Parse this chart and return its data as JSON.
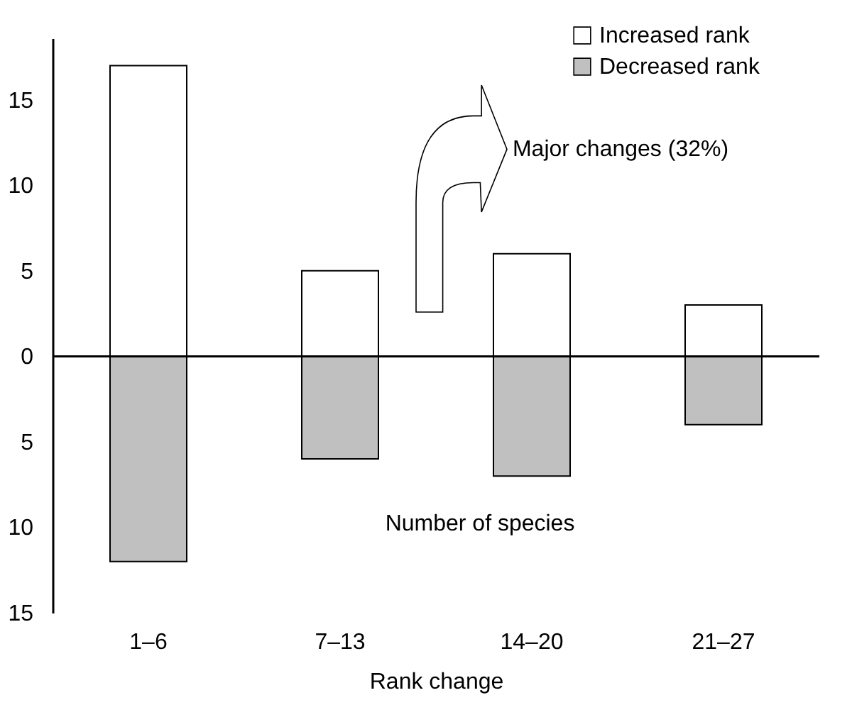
{
  "chart_data": {
    "type": "bar",
    "xlabel": "Rank change",
    "categories": [
      "1–6",
      "7–13",
      "14–20",
      "21–27"
    ],
    "series": [
      {
        "name": "Increased rank",
        "color": "#ffffff",
        "values": [
          17,
          5,
          6,
          3
        ]
      },
      {
        "name": "Decreased rank",
        "color": "#c0c0c0",
        "values": [
          -12,
          -6,
          -7,
          -4
        ]
      }
    ],
    "ylim": [
      -15,
      18.6
    ],
    "yticks": [
      {
        "value": -15,
        "label": "15"
      },
      {
        "value": -10,
        "label": "10"
      },
      {
        "value": -5,
        "label": "5"
      },
      0,
      5,
      10,
      15
    ],
    "ref_lines": [
      {
        "axis": "y",
        "value": 0
      }
    ],
    "annotations": [
      "Major changes (32%)",
      "Number of species"
    ],
    "grid": false,
    "legend": "top right",
    "stacked": true
  }
}
